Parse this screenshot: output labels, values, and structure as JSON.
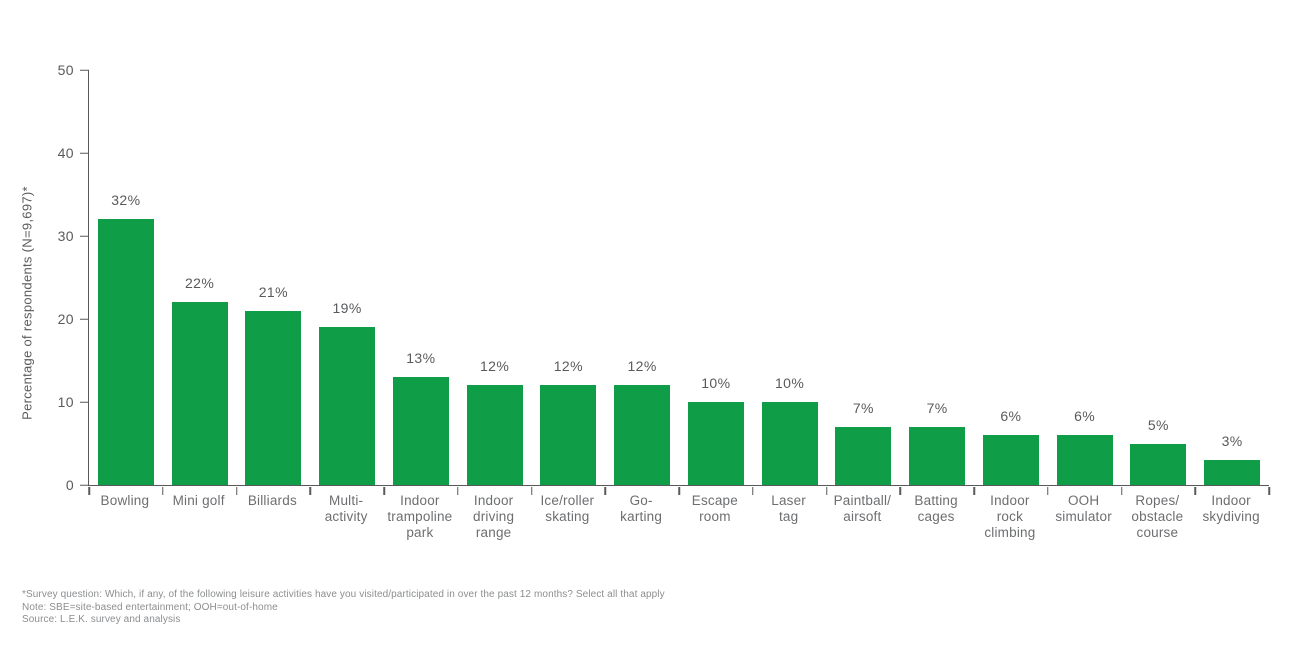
{
  "chart_data": {
    "type": "bar",
    "title": "",
    "xlabel": "",
    "ylabel": "Percentage of respondents (N=9,697)*",
    "ylim": [
      0,
      50
    ],
    "yticks": [
      0,
      10,
      20,
      30,
      40,
      50
    ],
    "grid": false,
    "legend": "none",
    "bar_color": "#0F9D47",
    "value_label_suffix": "%",
    "categories": [
      "Bowling",
      "Mini golf",
      "Billiards",
      "Multi-\nactivity",
      "Indoor\ntrampoline\npark",
      "Indoor\ndriving\nrange",
      "Ice/roller\nskating",
      "Go-\nkarting",
      "Escape\nroom",
      "Laser\ntag",
      "Paintball/\nairsoft",
      "Batting\ncages",
      "Indoor\nrock\nclimbing",
      "OOH\nsimulator",
      "Ropes/\nobstacle\ncourse",
      "Indoor\nskydiving"
    ],
    "values": [
      32,
      22,
      21,
      19,
      13,
      12,
      12,
      12,
      10,
      10,
      7,
      7,
      6,
      6,
      5,
      3
    ]
  },
  "footnotes": {
    "line1": "*Survey question: Which, if any, of the following leisure activities have you visited/participated in over the past 12 months? Select all that apply",
    "line2": "Note: SBE=site-based entertainment; OOH=out-of-home",
    "line3": "Source: L.E.K. survey and analysis"
  },
  "colors": {
    "bar": "#0F9D47",
    "axis": "#58595B",
    "tick_label": "#595A5C",
    "category_label": "#6D6E70",
    "footnote": "#8C8E90",
    "background": "#FFFFFF"
  }
}
